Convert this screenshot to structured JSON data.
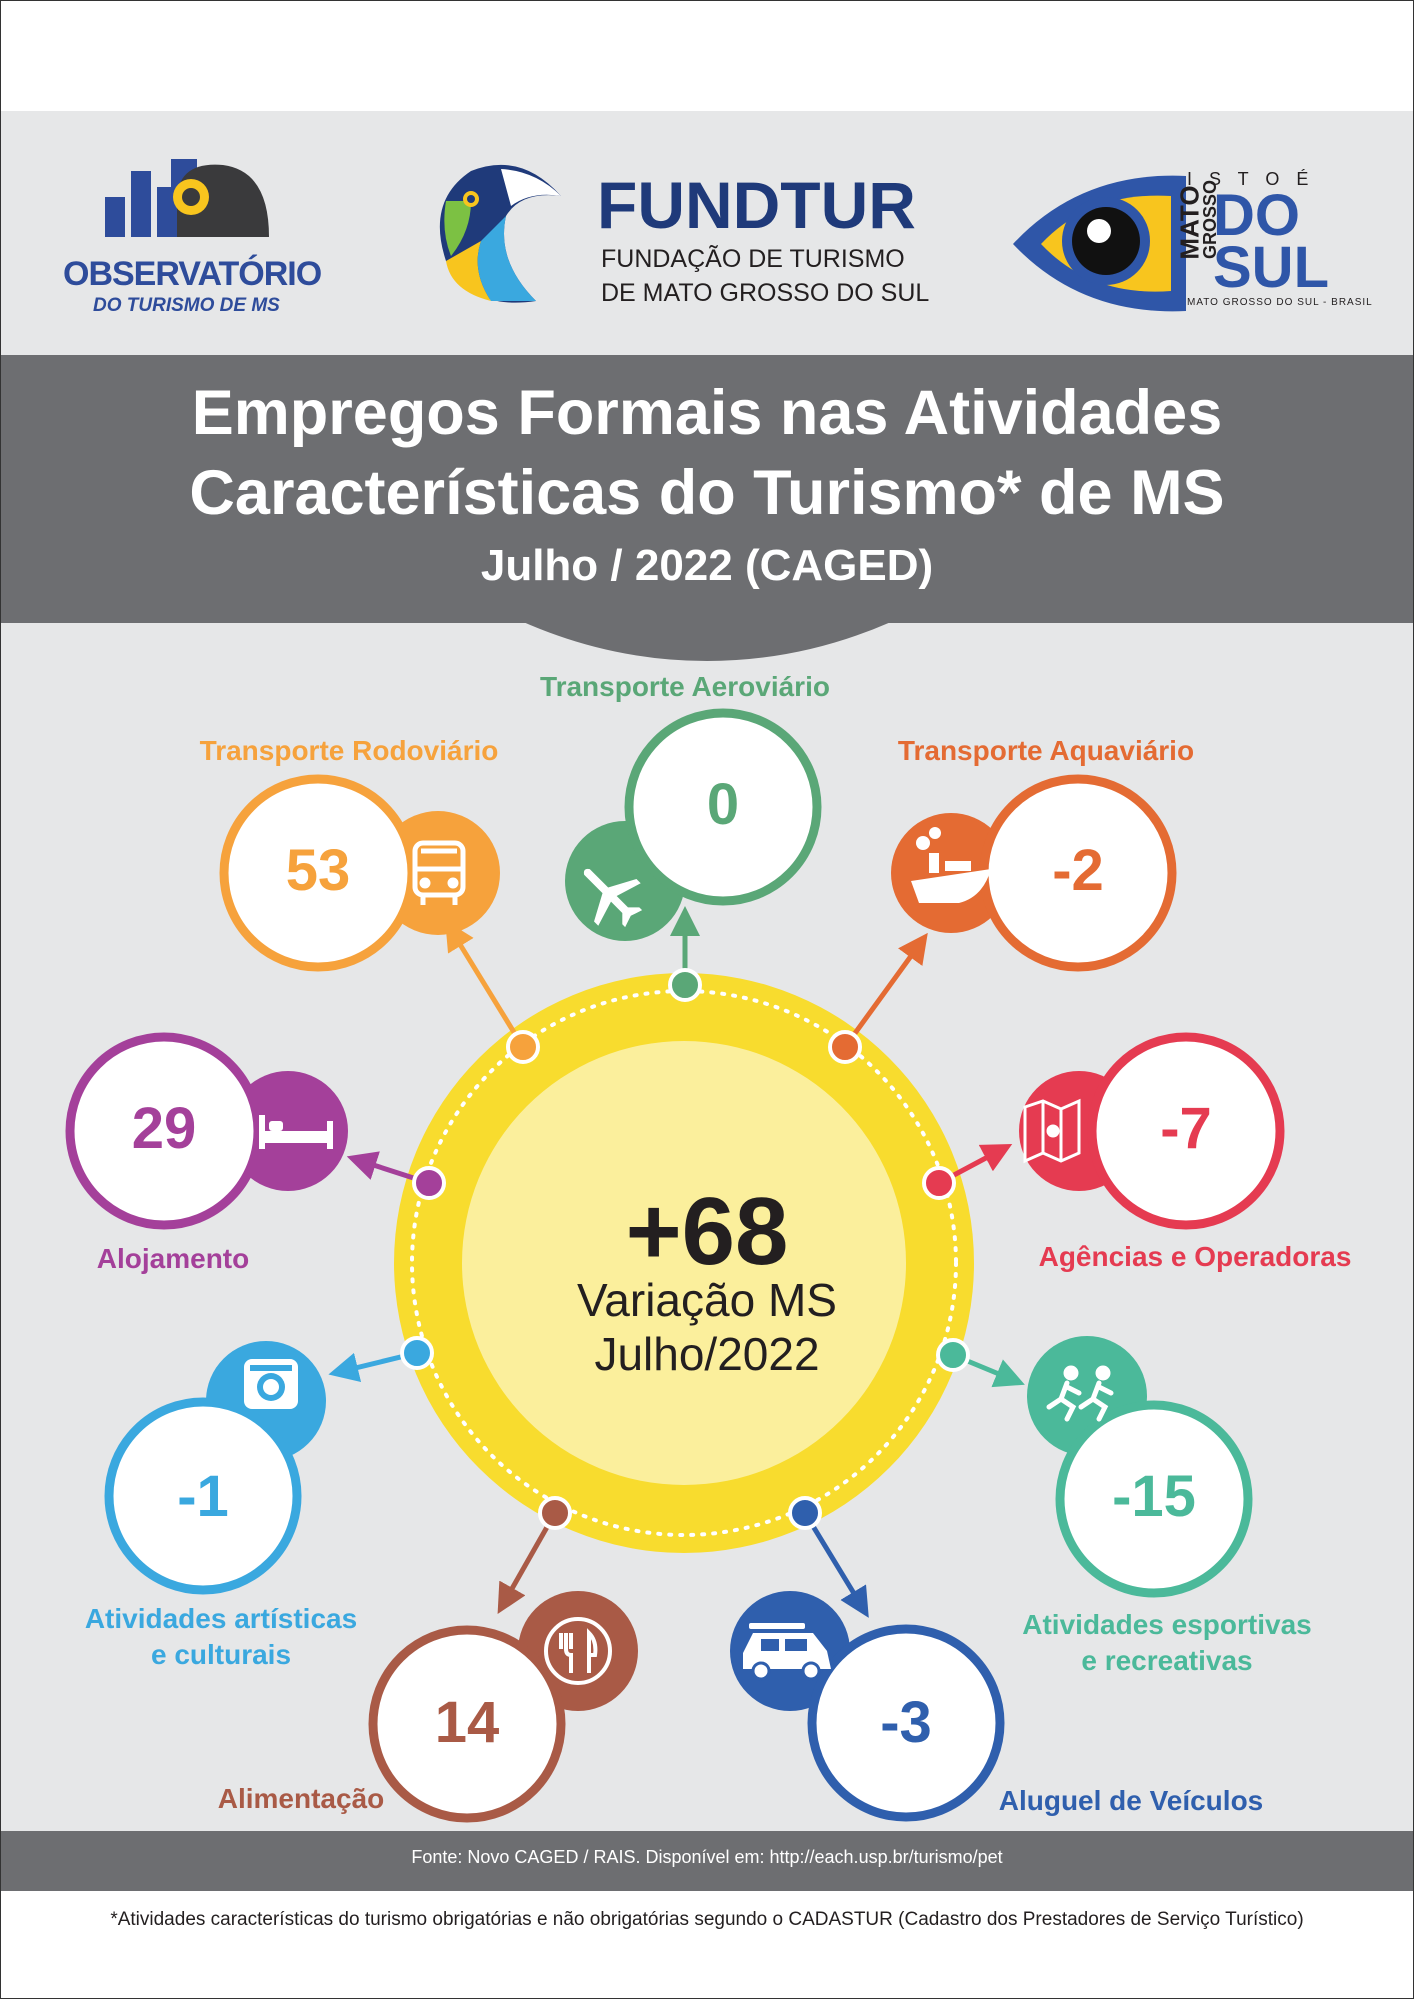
{
  "logos": {
    "observatorio": {
      "line1": "OBSERVATÓRIO",
      "line2": "DO TURISMO DE MS"
    },
    "fundtur": {
      "name": "FUNDTUR",
      "line1": "FUNDAÇÃO DE TURISMO",
      "line2": "DE MATO GROSSO DO SUL"
    },
    "ms": {
      "isto_e": "I S T O  É",
      "mato": "MATO",
      "grosso": "GROSSO",
      "do": "DO",
      "sul": "SUL",
      "footer": "MATO GROSSO DO SUL - BRASIL"
    }
  },
  "title": {
    "line1": "Empregos Formais nas Atividades",
    "line2": "Características do Turismo* de MS",
    "subtitle": "Julho / 2022 (CAGED)"
  },
  "center": {
    "value": "+68",
    "line1": "Variação MS",
    "line2": "Julho/2022"
  },
  "activities": [
    {
      "label": "Transporte Aeroviário",
      "value": "0",
      "color": "#5aa777",
      "icon": "airplane-icon"
    },
    {
      "label": "Transporte Rodoviário",
      "value": "53",
      "color": "#f6a23c",
      "icon": "bus-icon"
    },
    {
      "label": "Transporte Aquaviário",
      "value": "-2",
      "color": "#e46b33",
      "icon": "ship-icon"
    },
    {
      "label": "Alojamento",
      "value": "29",
      "color": "#a4409a",
      "icon": "bed-icon"
    },
    {
      "label": "Agências e Operadoras",
      "value": "-7",
      "color": "#e53b51",
      "icon": "map-icon"
    },
    {
      "label": "Atividades artísticas",
      "label2": "e culturais",
      "value": "-1",
      "color": "#3aa8df",
      "icon": "camera-icon"
    },
    {
      "label": "Atividades esportivas",
      "label2": "e recreativas",
      "value": "-15",
      "color": "#4bb99a",
      "icon": "running-icon"
    },
    {
      "label": "Alimentação",
      "value": "14",
      "color": "#a95a46",
      "icon": "fork-knife-icon"
    },
    {
      "label": "Aluguel de Veículos",
      "value": "-3",
      "color": "#2f5fad",
      "icon": "car-icon"
    }
  ],
  "footer": {
    "source": "Fonte: Novo CAGED / RAIS. Disponível em: http://each.usp.br/turismo/pet",
    "note": "*Atividades características do turismo obrigatórias e não obrigatórias segundo o CADASTUR (Cadastro dos Prestadores de Serviço Turístico)"
  },
  "colors": {
    "center_ring": "#f8dc2e",
    "center_fill": "#fbef9c",
    "band_gray": "#6d6e71",
    "bg_gray": "#e6e7e8"
  }
}
